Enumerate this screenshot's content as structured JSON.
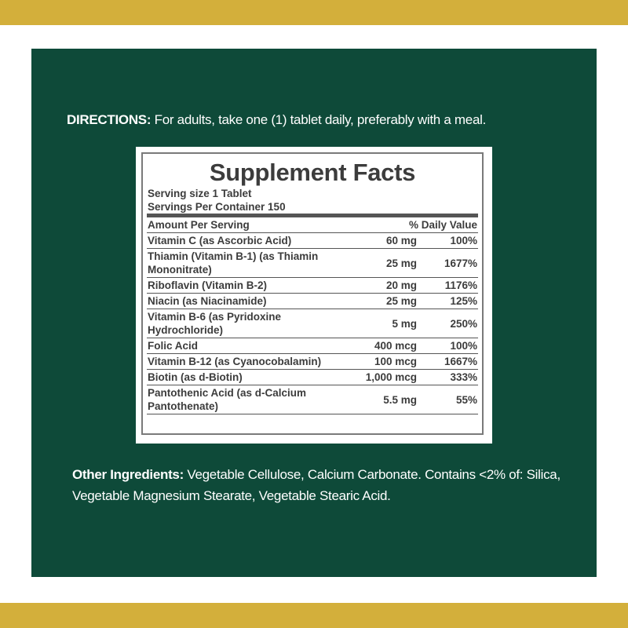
{
  "directions": {
    "label": "DIRECTIONS:",
    "text": "For adults, take one (1) tablet daily, preferably with a meal."
  },
  "supplement_facts": {
    "title": "Supplement Facts",
    "serving_size": "Serving size 1 Tablet",
    "servings_per_container": "Servings Per Container 150",
    "amount_header": "Amount Per Serving",
    "dv_header": "% Daily Value",
    "rows": [
      {
        "name": "Vitamin C (as Ascorbic Acid)",
        "amount": "60 mg",
        "dv": "100%"
      },
      {
        "name": "Thiamin (Vitamin B-1) (as Thiamin Mononitrate)",
        "amount": "25 mg",
        "dv": "1677%"
      },
      {
        "name": "Riboflavin (Vitamin B-2)",
        "amount": "20 mg",
        "dv": "1176%"
      },
      {
        "name": "Niacin (as Niacinamide)",
        "amount": "25 mg",
        "dv": "125%"
      },
      {
        "name": "Vitamin B-6 (as Pyridoxine Hydrochloride)",
        "amount": "5 mg",
        "dv": "250%"
      },
      {
        "name": "Folic Acid",
        "amount": "400 mcg",
        "dv": "100%"
      },
      {
        "name": "Vitamin B-12 (as Cyanocobalamin)",
        "amount": "100 mcg",
        "dv": "1667%"
      },
      {
        "name": "Biotin (as d-Biotin)",
        "amount": "1,000 mcg",
        "dv": "333%"
      },
      {
        "name": "Pantothenic Acid (as d-Calcium Pantothenate)",
        "amount": "5.5 mg",
        "dv": "55%"
      }
    ]
  },
  "other_ingredients": {
    "label": "Other Ingredients:",
    "text": "Vegetable Cellulose, Calcium Carbonate. Contains <2% of: Silica, Vegetable Magnesium Stearate, Vegetable Stearic Acid."
  }
}
